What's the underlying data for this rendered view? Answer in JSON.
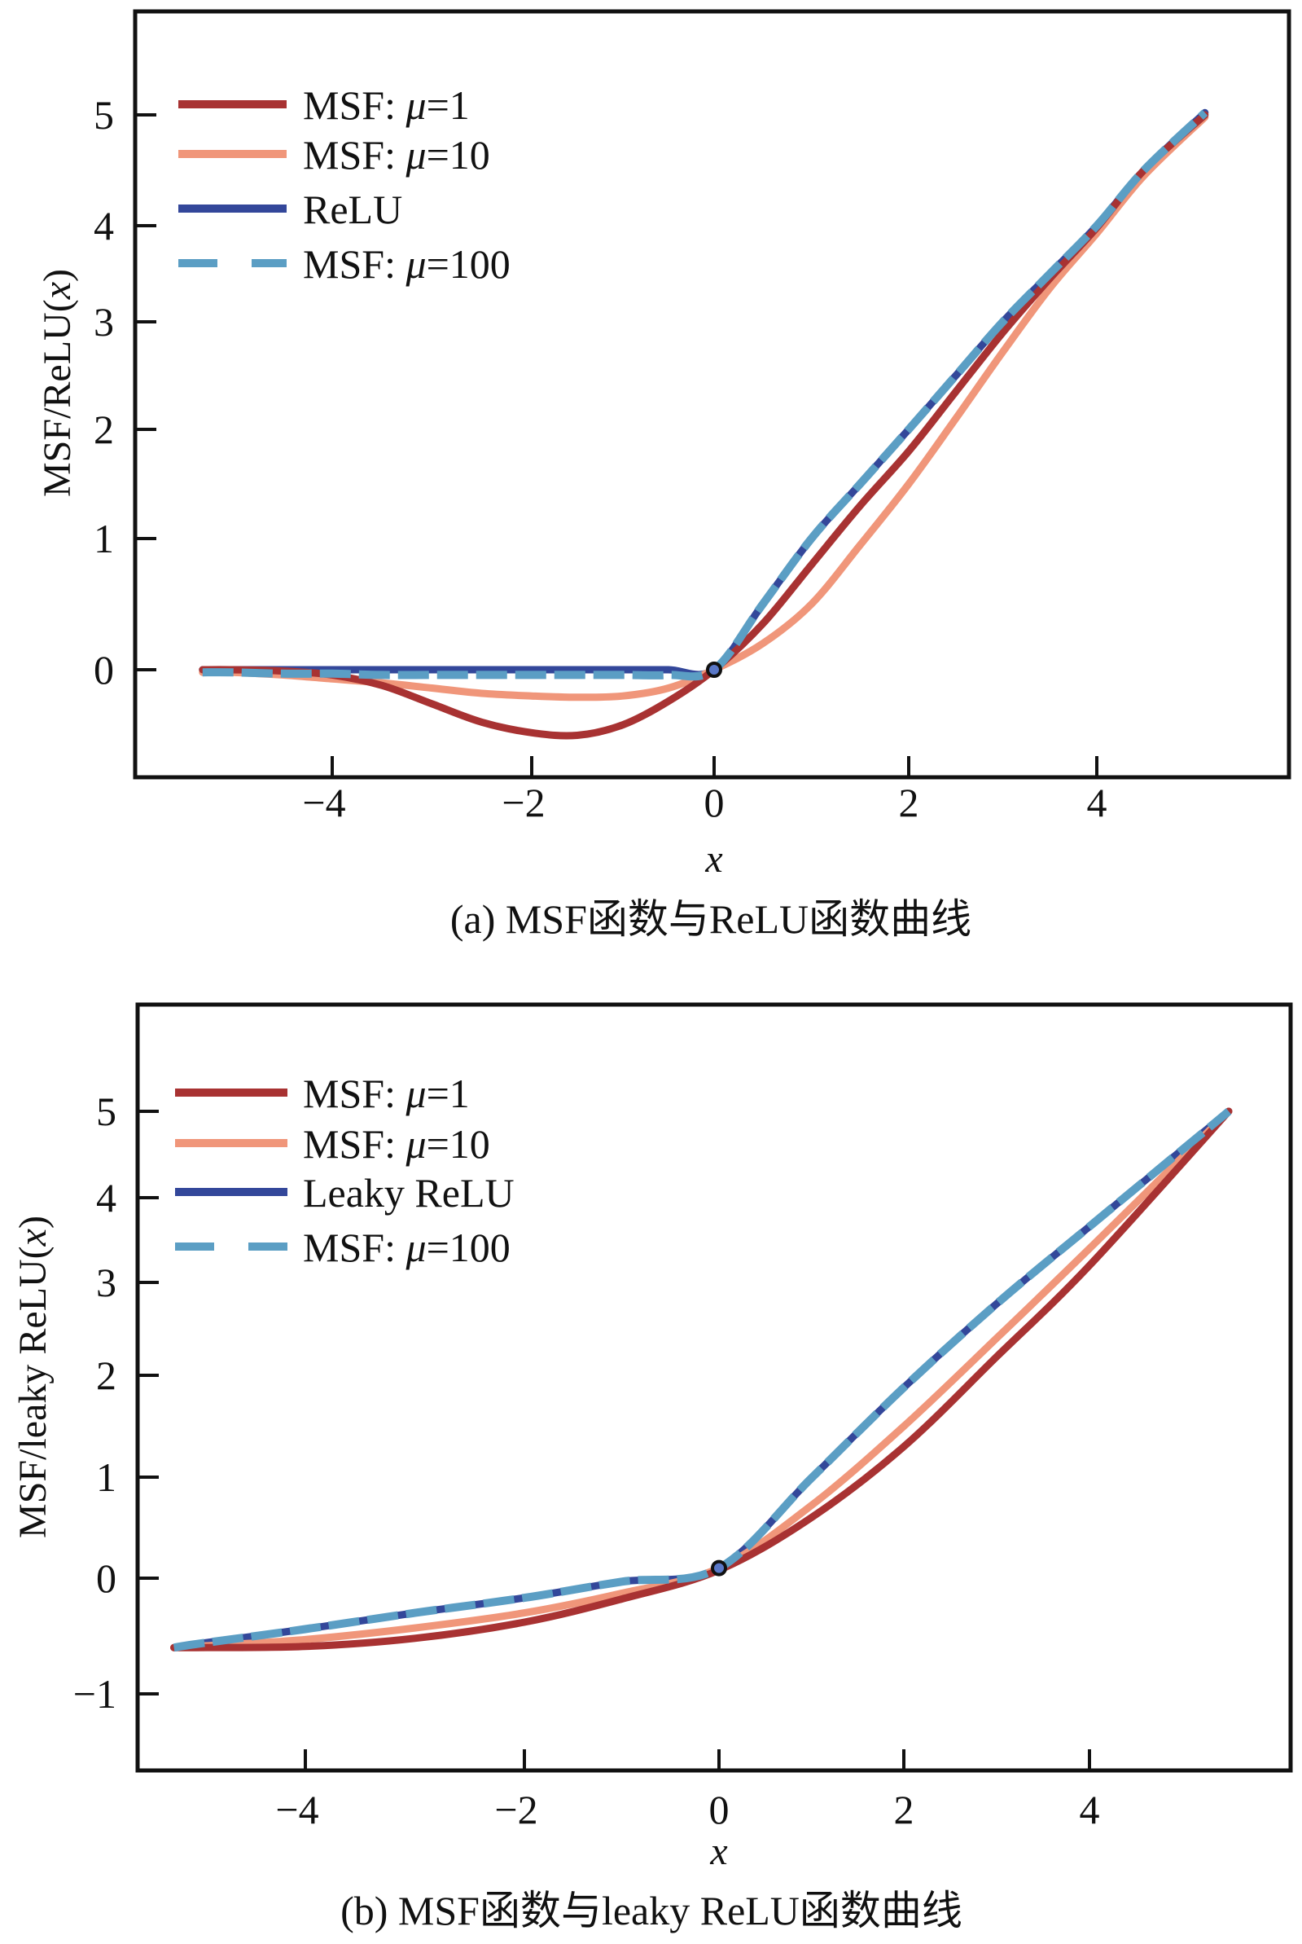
{
  "chart_data": [
    {
      "type": "line",
      "panel": "a",
      "caption": "(a) MSF函数与ReLU函数曲线",
      "xlabel": "x",
      "ylabel": "MSF/ReLU(x)",
      "xlim": [
        -5.5,
        6.0
      ],
      "ylim": [
        -0.7,
        5.9
      ],
      "grid": false,
      "legend_position": "top-left",
      "x_ticks": [
        -4,
        -2,
        0,
        2,
        4
      ],
      "x_tick_labels": [
        "−4",
        "−2",
        "0",
        "2",
        "4"
      ],
      "y_ticks": [
        0,
        1,
        2,
        3,
        4,
        5
      ],
      "y_tick_labels": [
        "0",
        "1",
        "2",
        "3",
        "4",
        "5"
      ],
      "x": [
        -5.3,
        -5,
        -4.5,
        -4,
        -3.5,
        -3,
        -2.5,
        -2,
        -1.5,
        -1,
        -0.5,
        0,
        0.5,
        1,
        1.5,
        2,
        2.5,
        3,
        3.5,
        4,
        4.5,
        5.15
      ],
      "series": [
        {
          "name": "MSF: μ=1",
          "label_prefix": "MSF: ",
          "label_mu": "μ",
          "label_suffix": "=1",
          "color": "#a83232",
          "dash": false,
          "values": [
            0,
            0,
            -0.01,
            -0.04,
            -0.12,
            -0.26,
            -0.4,
            -0.48,
            -0.5,
            -0.42,
            -0.24,
            0,
            0.35,
            0.8,
            1.3,
            1.8,
            2.35,
            2.9,
            3.45,
            3.98,
            4.5,
            5.0
          ]
        },
        {
          "name": "MSF: μ=10",
          "label_prefix": "MSF: ",
          "label_mu": "μ",
          "label_suffix": "=10",
          "color": "#f0967a",
          "dash": false,
          "values": [
            -0.02,
            -0.02,
            -0.04,
            -0.07,
            -0.1,
            -0.14,
            -0.18,
            -0.2,
            -0.21,
            -0.2,
            -0.14,
            0,
            0.2,
            0.5,
            0.95,
            1.5,
            2.1,
            2.72,
            3.35,
            3.92,
            4.45,
            4.98
          ]
        },
        {
          "name": "ReLU",
          "label_prefix": "ReLU",
          "label_mu": "",
          "label_suffix": "",
          "color": "#33479a",
          "dash": false,
          "values": [
            0,
            0,
            0,
            0,
            0,
            0,
            0,
            0,
            0,
            0,
            0,
            0,
            0.5,
            1.0,
            1.5,
            2.0,
            2.5,
            3.0,
            3.5,
            4.0,
            4.5,
            5.02
          ]
        },
        {
          "name": "MSF: μ=100",
          "label_prefix": "MSF: ",
          "label_mu": "μ",
          "label_suffix": "=100",
          "color": "#5b9ec4",
          "dash": true,
          "values": [
            -0.02,
            -0.02,
            -0.03,
            -0.03,
            -0.04,
            -0.04,
            -0.04,
            -0.04,
            -0.04,
            -0.04,
            -0.04,
            0,
            0.5,
            1.0,
            1.5,
            2.0,
            2.5,
            3.0,
            3.5,
            4.0,
            4.5,
            5.02
          ]
        }
      ],
      "marker": {
        "x": 0,
        "y": 0
      }
    },
    {
      "type": "line",
      "panel": "b",
      "caption": "(b) MSF函数与leaky ReLU函数曲线",
      "xlabel": "x",
      "ylabel": "MSF/leaky ReLU(x)",
      "xlim": [
        -5.5,
        6.0
      ],
      "ylim": [
        -1.7,
        6.1
      ],
      "grid": false,
      "legend_position": "top-left",
      "x_ticks": [
        -4,
        -2,
        0,
        2,
        4
      ],
      "x_tick_labels": [
        "−4",
        "−2",
        "0",
        "2",
        "4"
      ],
      "y_ticks": [
        -1,
        0,
        1,
        2,
        3,
        4,
        5
      ],
      "y_tick_labels": [
        "−1",
        "0",
        "1",
        "2",
        "3",
        "4",
        "5"
      ],
      "x": [
        -5.2,
        -5,
        -4,
        -3,
        -2,
        -1,
        0,
        1,
        2,
        3,
        4,
        5.5
      ],
      "series": [
        {
          "name": "MSF: μ=1",
          "label_prefix": "MSF: ",
          "label_mu": "μ",
          "label_suffix": "=1",
          "color": "#a83232",
          "dash": false,
          "values": [
            -0.6,
            -0.6,
            -0.59,
            -0.52,
            -0.38,
            -0.18,
            0.08,
            0.6,
            1.3,
            2.2,
            3.2,
            5.0
          ]
        },
        {
          "name": "MSF: μ=10",
          "label_prefix": "MSF: ",
          "label_mu": "μ",
          "label_suffix": "=10",
          "color": "#f0967a",
          "dash": false,
          "values": [
            -0.6,
            -0.59,
            -0.53,
            -0.43,
            -0.3,
            -0.13,
            0.1,
            0.72,
            1.5,
            2.4,
            3.4,
            5.0
          ]
        },
        {
          "name": "Leaky ReLU",
          "label_prefix": "Leaky ReLU",
          "label_mu": "",
          "label_suffix": "",
          "color": "#33479a",
          "dash": false,
          "values": [
            -0.6,
            -0.57,
            -0.44,
            -0.3,
            -0.17,
            -0.03,
            0.1,
            0.99,
            1.88,
            2.77,
            3.66,
            5.0
          ]
        },
        {
          "name": "MSF: μ=100",
          "label_prefix": "MSF: ",
          "label_mu": "μ",
          "label_suffix": "=100",
          "color": "#5b9ec4",
          "dash": true,
          "values": [
            -0.6,
            -0.57,
            -0.44,
            -0.3,
            -0.17,
            -0.03,
            0.1,
            0.99,
            1.88,
            2.77,
            3.66,
            5.0
          ]
        }
      ],
      "marker": {
        "x": 0,
        "y": 0.1
      }
    }
  ]
}
